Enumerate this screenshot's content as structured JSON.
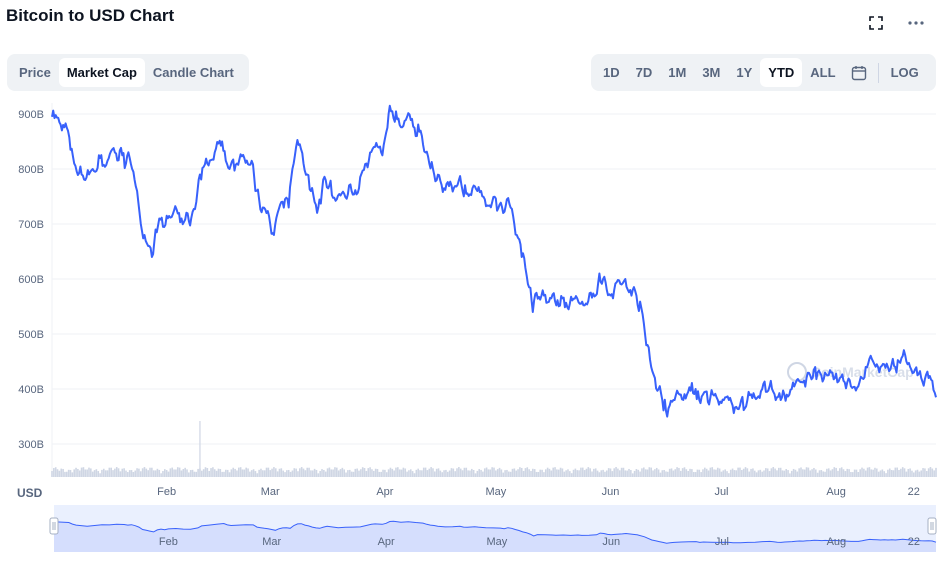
{
  "title": "Bitcoin to USD Chart",
  "view_tabs": [
    {
      "label": "Price",
      "active": false
    },
    {
      "label": "Market Cap",
      "active": true
    },
    {
      "label": "Candle Chart",
      "active": false
    }
  ],
  "range_tabs": [
    {
      "label": "1D",
      "active": false
    },
    {
      "label": "7D",
      "active": false
    },
    {
      "label": "1M",
      "active": false
    },
    {
      "label": "3M",
      "active": false
    },
    {
      "label": "1Y",
      "active": false
    },
    {
      "label": "YTD",
      "active": true
    },
    {
      "label": "ALL",
      "active": false
    }
  ],
  "log_label": "LOG",
  "icons": {
    "fullscreen": "fullscreen-icon",
    "more": "more-icon",
    "calendar": "calendar-icon"
  },
  "colors": {
    "line": "#3861fb",
    "accent": "#3861fb",
    "volume": "#cfd6e4"
  },
  "chart_data": {
    "type": "line",
    "currency_label": "USD",
    "y_unit_suffix": "B",
    "y_ticks": [
      300,
      400,
      500,
      600,
      700,
      800,
      900
    ],
    "ylim": [
      240,
      920
    ],
    "x_ticks": [
      {
        "label": "Feb",
        "day": 31
      },
      {
        "label": "Mar",
        "day": 59
      },
      {
        "label": "Apr",
        "day": 90
      },
      {
        "label": "May",
        "day": 120
      },
      {
        "label": "Jun",
        "day": 151
      },
      {
        "label": "Jul",
        "day": 181
      },
      {
        "label": "Aug",
        "day": 212
      },
      {
        "label": "22",
        "day": 233
      }
    ],
    "xlim": [
      0,
      239
    ],
    "grid": true,
    "watermark": "CoinMarketCap",
    "series": [
      {
        "values": [
          [
            0,
            895
          ],
          [
            2,
            885
          ],
          [
            4,
            875
          ],
          [
            5,
            835
          ],
          [
            6,
            810
          ],
          [
            8,
            790
          ],
          [
            9,
            780
          ],
          [
            11,
            800
          ],
          [
            13,
            820
          ],
          [
            15,
            815
          ],
          [
            17,
            830
          ],
          [
            19,
            825
          ],
          [
            20,
            810
          ],
          [
            21,
            820
          ],
          [
            22,
            795
          ],
          [
            23,
            760
          ],
          [
            24,
            700
          ],
          [
            25,
            680
          ],
          [
            26,
            660
          ],
          [
            27,
            640
          ],
          [
            28,
            690
          ],
          [
            29,
            710
          ],
          [
            30,
            695
          ],
          [
            31,
            715
          ],
          [
            33,
            725
          ],
          [
            35,
            710
          ],
          [
            37,
            705
          ],
          [
            39,
            740
          ],
          [
            40,
            790
          ],
          [
            42,
            810
          ],
          [
            44,
            830
          ],
          [
            46,
            850
          ],
          [
            47,
            815
          ],
          [
            48,
            800
          ],
          [
            50,
            810
          ],
          [
            52,
            820
          ],
          [
            54,
            815
          ],
          [
            55,
            760
          ],
          [
            56,
            745
          ],
          [
            57,
            730
          ],
          [
            58,
            720
          ],
          [
            59,
            700
          ],
          [
            60,
            680
          ],
          [
            61,
            720
          ],
          [
            62,
            740
          ],
          [
            63,
            745
          ],
          [
            64,
            730
          ],
          [
            65,
            800
          ],
          [
            66,
            840
          ],
          [
            67,
            845
          ],
          [
            68,
            810
          ],
          [
            69,
            790
          ],
          [
            70,
            760
          ],
          [
            71,
            740
          ],
          [
            72,
            730
          ],
          [
            73,
            760
          ],
          [
            74,
            780
          ],
          [
            75,
            770
          ],
          [
            77,
            745
          ],
          [
            79,
            755
          ],
          [
            81,
            760
          ],
          [
            83,
            765
          ],
          [
            85,
            810
          ],
          [
            86,
            830
          ],
          [
            87,
            840
          ],
          [
            89,
            830
          ],
          [
            90,
            855
          ],
          [
            91,
            900
          ],
          [
            92,
            905
          ],
          [
            94,
            880
          ],
          [
            96,
            895
          ],
          [
            98,
            875
          ],
          [
            100,
            860
          ],
          [
            101,
            830
          ],
          [
            102,
            810
          ],
          [
            103,
            800
          ],
          [
            104,
            780
          ],
          [
            106,
            765
          ],
          [
            108,
            770
          ],
          [
            110,
            780
          ],
          [
            111,
            760
          ],
          [
            112,
            755
          ],
          [
            114,
            770
          ],
          [
            115,
            760
          ],
          [
            117,
            745
          ],
          [
            119,
            740
          ],
          [
            121,
            735
          ],
          [
            122,
            720
          ],
          [
            123,
            745
          ],
          [
            124,
            730
          ],
          [
            125,
            700
          ],
          [
            126,
            675
          ],
          [
            127,
            640
          ],
          [
            128,
            620
          ],
          [
            129,
            585
          ],
          [
            130,
            540
          ],
          [
            131,
            575
          ],
          [
            133,
            570
          ],
          [
            135,
            565
          ],
          [
            136,
            560
          ],
          [
            138,
            565
          ],
          [
            140,
            555
          ],
          [
            142,
            565
          ],
          [
            143,
            555
          ],
          [
            145,
            560
          ],
          [
            147,
            570
          ],
          [
            148,
            610
          ],
          [
            149,
            600
          ],
          [
            150,
            580
          ],
          [
            151,
            570
          ],
          [
            152,
            580
          ],
          [
            154,
            590
          ],
          [
            155,
            600
          ],
          [
            157,
            580
          ],
          [
            158,
            570
          ],
          [
            160,
            520
          ],
          [
            161,
            480
          ],
          [
            162,
            440
          ],
          [
            163,
            420
          ],
          [
            164,
            400
          ],
          [
            165,
            380
          ],
          [
            166,
            360
          ],
          [
            167,
            370
          ],
          [
            168,
            380
          ],
          [
            170,
            390
          ],
          [
            172,
            395
          ],
          [
            174,
            400
          ],
          [
            175,
            380
          ],
          [
            176,
            390
          ],
          [
            178,
            385
          ],
          [
            180,
            380
          ],
          [
            182,
            385
          ],
          [
            183,
            380
          ],
          [
            184,
            370
          ],
          [
            186,
            370
          ],
          [
            188,
            380
          ],
          [
            190,
            385
          ],
          [
            192,
            400
          ],
          [
            194,
            405
          ],
          [
            195,
            395
          ],
          [
            196,
            385
          ],
          [
            197,
            380
          ],
          [
            198,
            390
          ],
          [
            200,
            400
          ],
          [
            201,
            410
          ],
          [
            202,
            415
          ],
          [
            203,
            412
          ],
          [
            204,
            420
          ],
          [
            205,
            425
          ],
          [
            206,
            435
          ],
          [
            207,
            430
          ],
          [
            208,
            425
          ],
          [
            209,
            430
          ],
          [
            210,
            425
          ],
          [
            211,
            430
          ],
          [
            212,
            428
          ],
          [
            213,
            420
          ],
          [
            214,
            415
          ],
          [
            216,
            405
          ],
          [
            218,
            405
          ],
          [
            219,
            420
          ],
          [
            220,
            440
          ],
          [
            221,
            455
          ],
          [
            222,
            450
          ],
          [
            223,
            445
          ],
          [
            224,
            440
          ],
          [
            225,
            445
          ],
          [
            226,
            440
          ],
          [
            227,
            445
          ],
          [
            228,
            440
          ],
          [
            229,
            450
          ],
          [
            230,
            460
          ],
          [
            231,
            450
          ],
          [
            232,
            440
          ],
          [
            233,
            430
          ],
          [
            234,
            425
          ],
          [
            235,
            420
          ],
          [
            236,
            418
          ],
          [
            237,
            420
          ],
          [
            238,
            415
          ],
          [
            239,
            385
          ]
        ]
      }
    ],
    "volume_spike_day": 40
  }
}
